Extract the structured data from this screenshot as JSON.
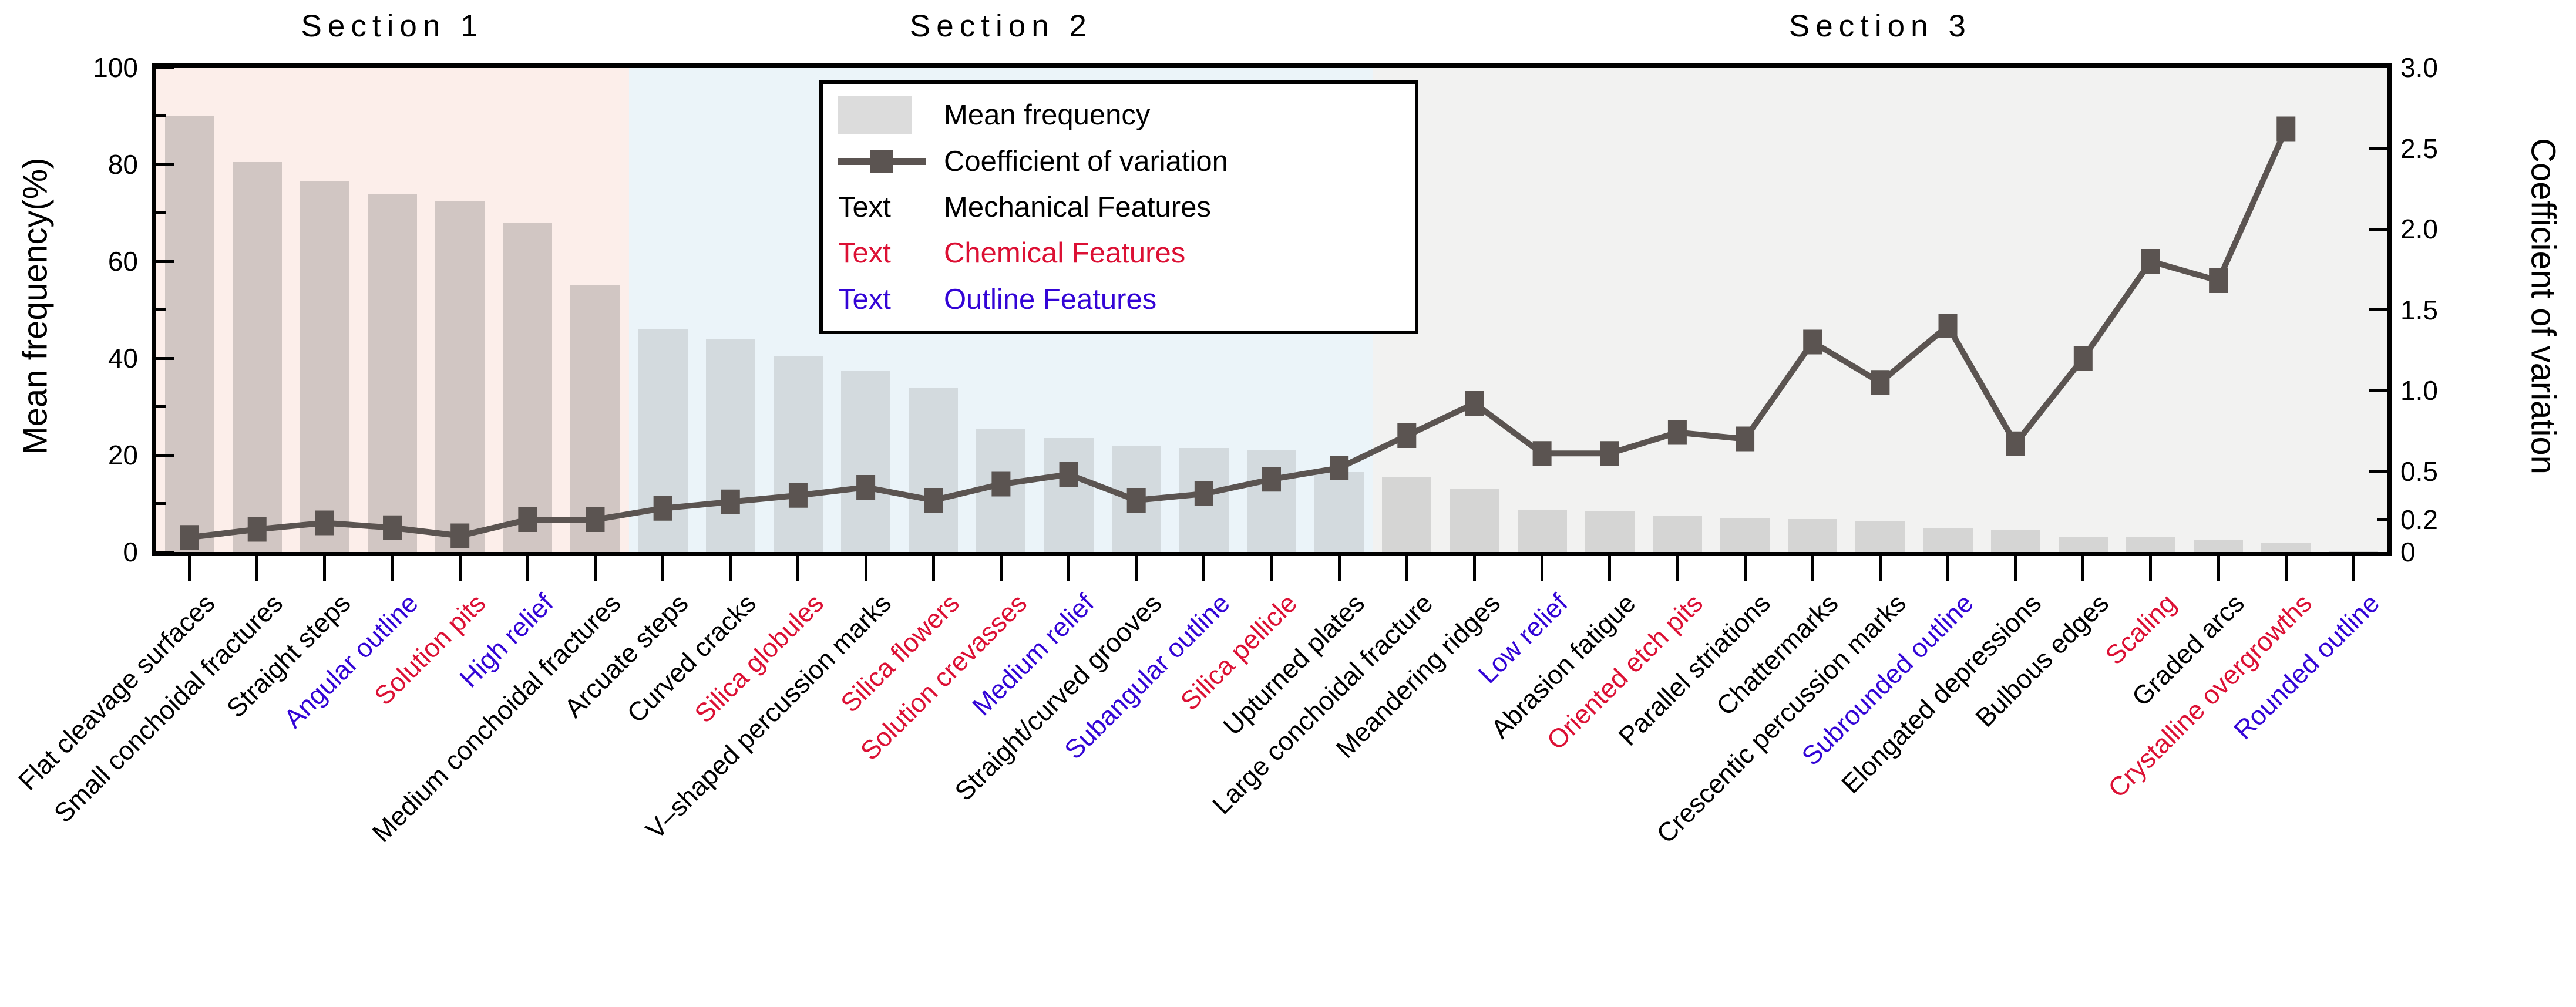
{
  "figure": {
    "left_axis_title": "Mean frequency(%)",
    "right_axis_title": "Coefficient of variation",
    "left_tick_labels": [
      "0",
      "20",
      "40",
      "60",
      "80",
      "100"
    ],
    "right_tick_labels": [
      "0",
      "0.2",
      "0.5",
      "1.0",
      "1.5",
      "2.0",
      "2.5",
      "3.0"
    ]
  },
  "legend": {
    "mean_frequency": "Mean frequency",
    "coefficient_of_variation": "Coefficient of variation",
    "text_sample": "Text",
    "mechanical": "Mechanical Features",
    "chemical": "Chemical Features",
    "outline": "Outline Features"
  },
  "colors": {
    "mechanical_text": "#000000",
    "chemical_text": "#dc1034",
    "outline_text": "#3304d6",
    "cv_line": "#5b5451",
    "legend_bar_swatch": "#dcdcdc",
    "section1_bg": "#fceeea",
    "section2_bg": "#ebf4f9",
    "section3_bg": "#f2f2f1",
    "section1_bar": "#d1c6c3",
    "section2_bar": "#d3dade",
    "section3_bar": "#d5d5d4"
  },
  "chart_data": {
    "type": "bar",
    "subtype": "bar+line dual axis",
    "title": "",
    "xlabel": "",
    "ylabel_left": "Mean frequency(%)",
    "ylabel_right": "Coefficient of variation",
    "ylim_left": [
      0,
      100
    ],
    "ylim_right": [
      0,
      3.0
    ],
    "left_ticks": [
      0,
      20,
      40,
      60,
      80,
      100
    ],
    "right_ticks": [
      0,
      0.2,
      0.5,
      1.0,
      1.5,
      2.0,
      2.5,
      3.0
    ],
    "grid": false,
    "legend_position": "upper area inside plot, left of center",
    "sections": [
      {
        "label": "Section 1",
        "start": 0,
        "end": 6
      },
      {
        "label": "Section 2",
        "start": 7,
        "end": 17
      },
      {
        "label": "Section 3",
        "start": 18,
        "end": 32
      }
    ],
    "series": [
      {
        "name": "Mean frequency",
        "axis": "left"
      },
      {
        "name": "Coefficient of variation",
        "axis": "right"
      }
    ],
    "categories": [
      {
        "label": "Flat cleavage surfaces",
        "feature_type": "mechanical",
        "mean_frequency": 90,
        "cv": 0.09
      },
      {
        "label": "Small conchoidal fractures",
        "feature_type": "mechanical",
        "mean_frequency": 80.5,
        "cv": 0.14
      },
      {
        "label": "Straight steps",
        "feature_type": "mechanical",
        "mean_frequency": 76.5,
        "cv": 0.18
      },
      {
        "label": "Angular outline",
        "feature_type": "outline",
        "mean_frequency": 74,
        "cv": 0.15
      },
      {
        "label": "Solution pits",
        "feature_type": "chemical",
        "mean_frequency": 72.5,
        "cv": 0.1
      },
      {
        "label": "High relief",
        "feature_type": "outline",
        "mean_frequency": 68,
        "cv": 0.2
      },
      {
        "label": "Medium conchoidal fractures",
        "feature_type": "mechanical",
        "mean_frequency": 55,
        "cv": 0.2
      },
      {
        "label": "Arcuate steps",
        "feature_type": "mechanical",
        "mean_frequency": 46,
        "cv": 0.27
      },
      {
        "label": "Curved cracks",
        "feature_type": "mechanical",
        "mean_frequency": 44,
        "cv": 0.31
      },
      {
        "label": "Silica globules",
        "feature_type": "chemical",
        "mean_frequency": 40.5,
        "cv": 0.35
      },
      {
        "label": "V–shaped percussion marks",
        "feature_type": "mechanical",
        "mean_frequency": 37.5,
        "cv": 0.4
      },
      {
        "label": "Silica flowers",
        "feature_type": "chemical",
        "mean_frequency": 34,
        "cv": 0.32
      },
      {
        "label": "Solution crevasses",
        "feature_type": "chemical",
        "mean_frequency": 25.5,
        "cv": 0.42
      },
      {
        "label": "Medium relief",
        "feature_type": "outline",
        "mean_frequency": 23.5,
        "cv": 0.48
      },
      {
        "label": "Straight/curved grooves",
        "feature_type": "mechanical",
        "mean_frequency": 22,
        "cv": 0.32
      },
      {
        "label": "Subangular outline",
        "feature_type": "outline",
        "mean_frequency": 21.5,
        "cv": 0.36
      },
      {
        "label": "Silica pellicle",
        "feature_type": "chemical",
        "mean_frequency": 21,
        "cv": 0.45
      },
      {
        "label": "Upturned plates",
        "feature_type": "mechanical",
        "mean_frequency": 16.5,
        "cv": 0.52
      },
      {
        "label": "Large conchoidal fracture",
        "feature_type": "mechanical",
        "mean_frequency": 15.5,
        "cv": 0.72
      },
      {
        "label": "Meandering ridges",
        "feature_type": "mechanical",
        "mean_frequency": 13,
        "cv": 0.92
      },
      {
        "label": "Low relief",
        "feature_type": "outline",
        "mean_frequency": 8.6,
        "cv": 0.61
      },
      {
        "label": "Abrasion fatigue",
        "feature_type": "mechanical",
        "mean_frequency": 8.4,
        "cv": 0.61
      },
      {
        "label": "Oriented etch pits",
        "feature_type": "chemical",
        "mean_frequency": 7.4,
        "cv": 0.74
      },
      {
        "label": "Parallel striations",
        "feature_type": "mechanical",
        "mean_frequency": 7,
        "cv": 0.7
      },
      {
        "label": "Chattermarks",
        "feature_type": "mechanical",
        "mean_frequency": 6.8,
        "cv": 1.3
      },
      {
        "label": "Crescentic percussion marks",
        "feature_type": "mechanical",
        "mean_frequency": 6.4,
        "cv": 1.05
      },
      {
        "label": "Subrounded outline",
        "feature_type": "outline",
        "mean_frequency": 5,
        "cv": 1.4
      },
      {
        "label": "Elongated depressions",
        "feature_type": "mechanical",
        "mean_frequency": 4.6,
        "cv": 0.67
      },
      {
        "label": "Bulbous edges",
        "feature_type": "mechanical",
        "mean_frequency": 3.2,
        "cv": 1.2
      },
      {
        "label": "Scaling",
        "feature_type": "chemical",
        "mean_frequency": 3.0,
        "cv": 1.8
      },
      {
        "label": "Graded arcs",
        "feature_type": "mechanical",
        "mean_frequency": 2.6,
        "cv": 1.68
      },
      {
        "label": "Crystalline overgrowths",
        "feature_type": "chemical",
        "mean_frequency": 1.8,
        "cv": 2.62
      },
      {
        "label": "Rounded outline",
        "feature_type": "outline",
        "mean_frequency": 0.3,
        "cv": null
      }
    ]
  }
}
